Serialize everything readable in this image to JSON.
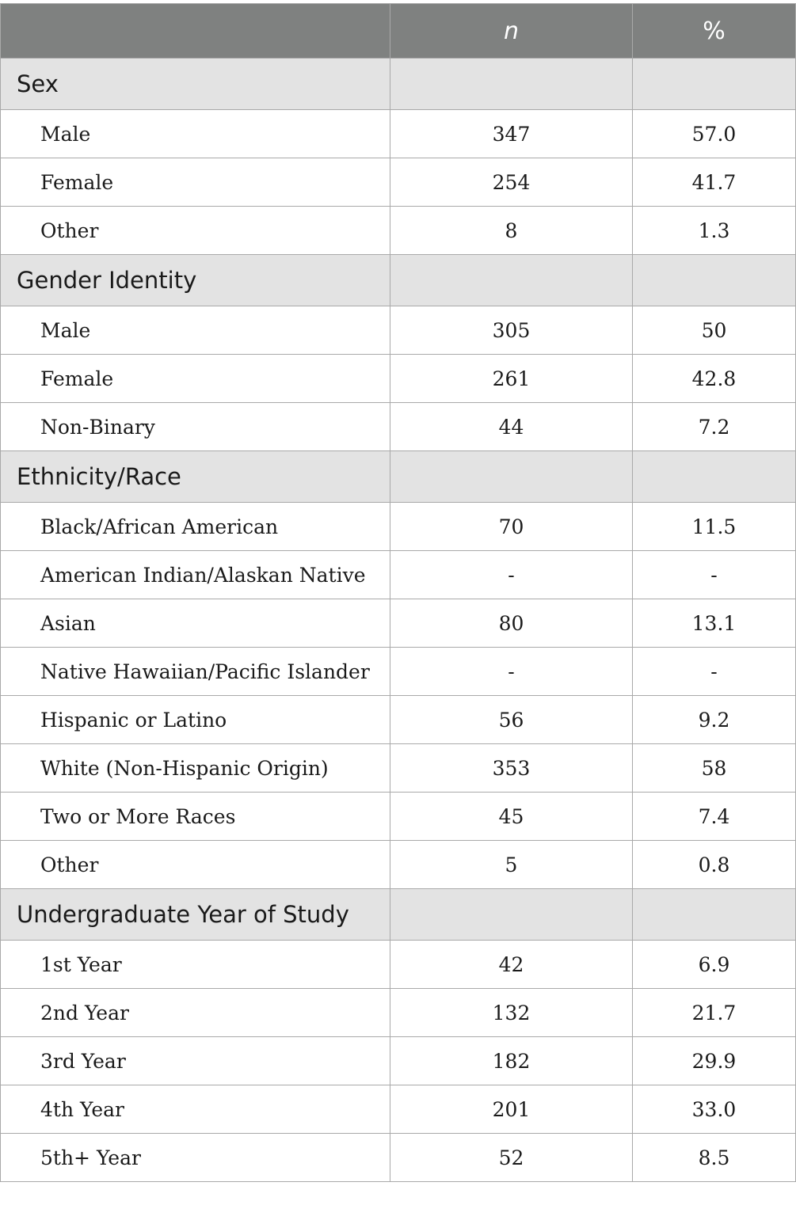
{
  "table": {
    "headers": [
      "",
      "n",
      "%"
    ],
    "sections": [
      {
        "title": "Sex",
        "rows": [
          {
            "label": "Male",
            "n": "347",
            "pct": "57.0"
          },
          {
            "label": "Female",
            "n": "254",
            "pct": "41.7"
          },
          {
            "label": "Other",
            "n": "8",
            "pct": "1.3"
          }
        ]
      },
      {
        "title": "Gender Identity",
        "rows": [
          {
            "label": "Male",
            "n": "305",
            "pct": "50"
          },
          {
            "label": "Female",
            "n": "261",
            "pct": "42.8"
          },
          {
            "label": "Non-Binary",
            "n": "44",
            "pct": "7.2"
          }
        ]
      },
      {
        "title": "Ethnicity/Race",
        "rows": [
          {
            "label": "Black/African American",
            "n": "70",
            "pct": "11.5"
          },
          {
            "label": "American Indian/Alaskan Native",
            "n": "-",
            "pct": "-"
          },
          {
            "label": "Asian",
            "n": "80",
            "pct": "13.1"
          },
          {
            "label": "Native Hawaiian/Pacific Islander",
            "n": "-",
            "pct": "-"
          },
          {
            "label": "Hispanic or Latino",
            "n": "56",
            "pct": "9.2"
          },
          {
            "label": "White (Non-Hispanic Origin)",
            "n": "353",
            "pct": "58"
          },
          {
            "label": "Two or More Races",
            "n": "45",
            "pct": "7.4"
          },
          {
            "label": "Other",
            "n": "5",
            "pct": "0.8"
          }
        ]
      },
      {
        "title": "Undergraduate Year of Study",
        "rows": [
          {
            "label": "1st Year",
            "n": "42",
            "pct": "6.9"
          },
          {
            "label": "2nd Year",
            "n": "132",
            "pct": "21.7"
          },
          {
            "label": "3rd Year",
            "n": "182",
            "pct": "29.9"
          },
          {
            "label": "4th Year",
            "n": "201",
            "pct": "33.0"
          },
          {
            "label": "5th+ Year",
            "n": "52",
            "pct": "8.5"
          }
        ]
      }
    ]
  }
}
